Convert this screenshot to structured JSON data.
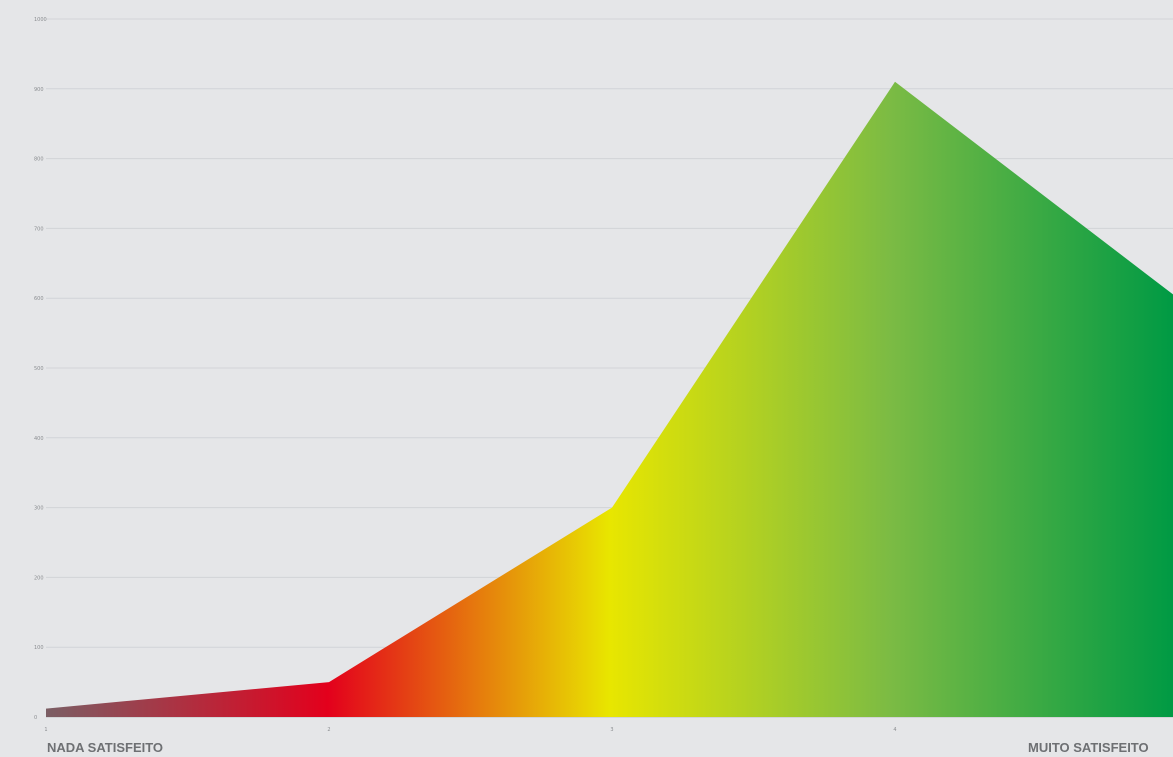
{
  "chart_data": {
    "type": "area",
    "x": [
      1,
      2,
      3,
      4,
      5
    ],
    "values": [
      12,
      50,
      300,
      910,
      600
    ],
    "xtick_labels": [
      "1",
      "2",
      "3",
      "4"
    ],
    "ylim": [
      0,
      1000
    ],
    "yticks": [
      0,
      100,
      200,
      300,
      400,
      500,
      600,
      700,
      800,
      900,
      1000
    ],
    "ytick_labels": [
      "0",
      "100",
      "200",
      "300",
      "400",
      "500",
      "600",
      "700",
      "800",
      "900",
      "1000"
    ],
    "grid": true,
    "gradient_colors": [
      "#7b5e64",
      "#e3001c",
      "#e8e600",
      "#7bbb44",
      "#009a44"
    ]
  },
  "labels": {
    "left": "NADA SATISFEITO",
    "right": "MUITO SATISFEITO"
  }
}
